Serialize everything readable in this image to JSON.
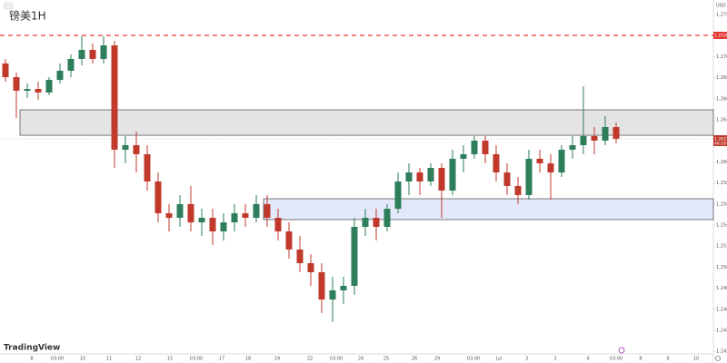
{
  "chart_data": {
    "type": "candlestick",
    "title": "镑美1H",
    "currency": "USD",
    "brand": "TradingView",
    "ylim": [
      1.24176,
      1.27538
    ],
    "yticks": [
      {
        "value": 1.274,
        "label": "1.27400"
      },
      {
        "value": 1.272,
        "label": "1.27200"
      },
      {
        "value": 1.27,
        "label": "1.27000"
      },
      {
        "value": 1.268,
        "label": "1.26800"
      },
      {
        "value": 1.266,
        "label": "1.26600"
      },
      {
        "value": 1.264,
        "label": "1.26400"
      },
      {
        "value": 1.262,
        "label": "1.26200"
      },
      {
        "value": 1.26,
        "label": "1.26000"
      },
      {
        "value": 1.258,
        "label": "1.25800"
      },
      {
        "value": 1.256,
        "label": "1.25600"
      },
      {
        "value": 1.254,
        "label": "1.25400"
      },
      {
        "value": 1.252,
        "label": "1.25200"
      },
      {
        "value": 1.25,
        "label": "1.25000"
      },
      {
        "value": 1.248,
        "label": "1.24800"
      },
      {
        "value": 1.246,
        "label": "1.24600"
      },
      {
        "value": 1.244,
        "label": "1.24400"
      },
      {
        "value": 1.242,
        "label": "1.24200"
      }
    ],
    "x_labels": [
      "8",
      "03:00",
      "10",
      "11",
      "12",
      "15",
      "03:00",
      "17",
      "18",
      "19",
      "22",
      "03:00",
      "24",
      "25",
      "26",
      "29",
      "03:00",
      "Jul",
      "2",
      "3",
      "4",
      "03:00",
      "8",
      "9",
      "10"
    ],
    "up_color": "#2e7d5b",
    "down_color": "#c0392b",
    "resistance": {
      "value": 1.27202,
      "label": "1.27202",
      "color": "#e53935"
    },
    "last_price": {
      "value": 1.26219,
      "label": "1.26219",
      "countdown": "46:18",
      "color": "#c0392b"
    },
    "zones": [
      {
        "top": 1.26495,
        "bottom": 1.26253,
        "fill": "#e4e4e4"
      },
      {
        "top": 1.2565,
        "bottom": 1.25452,
        "fill": "#e3e9fb"
      }
    ],
    "candles": [
      [
        1.26935,
        1.26978,
        1.26762,
        1.26805
      ],
      [
        1.26805,
        1.26848,
        1.26417,
        1.26676
      ],
      [
        1.26676,
        1.26745,
        1.26607,
        1.26693
      ],
      [
        1.26693,
        1.26762,
        1.2659,
        1.26659
      ],
      [
        1.26659,
        1.26805,
        1.26633,
        1.26779
      ],
      [
        1.26779,
        1.26935,
        1.26745,
        1.26866
      ],
      [
        1.26866,
        1.27021,
        1.26805,
        1.26978
      ],
      [
        1.26978,
        1.27193,
        1.26917,
        1.27064
      ],
      [
        1.27064,
        1.27124,
        1.26935,
        1.26978
      ],
      [
        1.26978,
        1.27193,
        1.26935,
        1.27107
      ],
      [
        1.27107,
        1.2715,
        1.25943,
        1.26116
      ],
      [
        1.26116,
        1.26245,
        1.25986,
        1.26159
      ],
      [
        1.26159,
        1.26288,
        1.259,
        1.26073
      ],
      [
        1.26073,
        1.26159,
        1.25728,
        1.25814
      ],
      [
        1.25814,
        1.259,
        1.25426,
        1.25512
      ],
      [
        1.25512,
        1.25599,
        1.2534,
        1.25469
      ],
      [
        1.25469,
        1.25685,
        1.25383,
        1.25599
      ],
      [
        1.25599,
        1.25771,
        1.2534,
        1.25426
      ],
      [
        1.25426,
        1.25555,
        1.25297,
        1.25469
      ],
      [
        1.25469,
        1.25555,
        1.25211,
        1.2534
      ],
      [
        1.2534,
        1.25512,
        1.25254,
        1.25426
      ],
      [
        1.25426,
        1.25599,
        1.2534,
        1.25512
      ],
      [
        1.25512,
        1.25599,
        1.25383,
        1.25469
      ],
      [
        1.25469,
        1.25685,
        1.25426,
        1.25599
      ],
      [
        1.25599,
        1.25685,
        1.25383,
        1.25469
      ],
      [
        1.25469,
        1.25555,
        1.25254,
        1.2534
      ],
      [
        1.2534,
        1.25426,
        1.25081,
        1.25168
      ],
      [
        1.25168,
        1.25297,
        1.24952,
        1.25038
      ],
      [
        1.25038,
        1.25124,
        1.24823,
        1.24952
      ],
      [
        1.24952,
        1.25038,
        1.24564,
        1.24693
      ],
      [
        1.24693,
        1.24909,
        1.24478,
        1.2478
      ],
      [
        1.2478,
        1.24909,
        1.2465,
        1.24823
      ],
      [
        1.24823,
        1.25469,
        1.24737,
        1.25383
      ],
      [
        1.25383,
        1.25555,
        1.25297,
        1.25469
      ],
      [
        1.25469,
        1.25555,
        1.25254,
        1.25383
      ],
      [
        1.25383,
        1.25599,
        1.2534,
        1.25555
      ],
      [
        1.25555,
        1.259,
        1.25512,
        1.25814
      ],
      [
        1.25814,
        1.25986,
        1.25685,
        1.259
      ],
      [
        1.259,
        1.25943,
        1.25685,
        1.25814
      ],
      [
        1.25814,
        1.25986,
        1.25771,
        1.25943
      ],
      [
        1.25943,
        1.25986,
        1.25469,
        1.25728
      ],
      [
        1.25728,
        1.26116,
        1.25685,
        1.2603
      ],
      [
        1.2603,
        1.26159,
        1.259,
        1.26073
      ],
      [
        1.26073,
        1.26245,
        1.2603,
        1.26202
      ],
      [
        1.26202,
        1.26245,
        1.25986,
        1.26073
      ],
      [
        1.26073,
        1.26159,
        1.25814,
        1.259
      ],
      [
        1.259,
        1.25986,
        1.25685,
        1.25771
      ],
      [
        1.25771,
        1.25857,
        1.25599,
        1.25685
      ],
      [
        1.25685,
        1.26116,
        1.25642,
        1.2603
      ],
      [
        1.2603,
        1.26116,
        1.259,
        1.25986
      ],
      [
        1.25986,
        1.26073,
        1.25642,
        1.259
      ],
      [
        1.259,
        1.26159,
        1.25857,
        1.26116
      ],
      [
        1.26116,
        1.26245,
        1.2603,
        1.26159
      ],
      [
        1.26159,
        1.26719,
        1.26073,
        1.26245
      ],
      [
        1.26245,
        1.26331,
        1.26073,
        1.26202
      ],
      [
        1.26202,
        1.26435,
        1.26159,
        1.26331
      ],
      [
        1.26331,
        1.26374,
        1.26176,
        1.26219
      ]
    ]
  }
}
